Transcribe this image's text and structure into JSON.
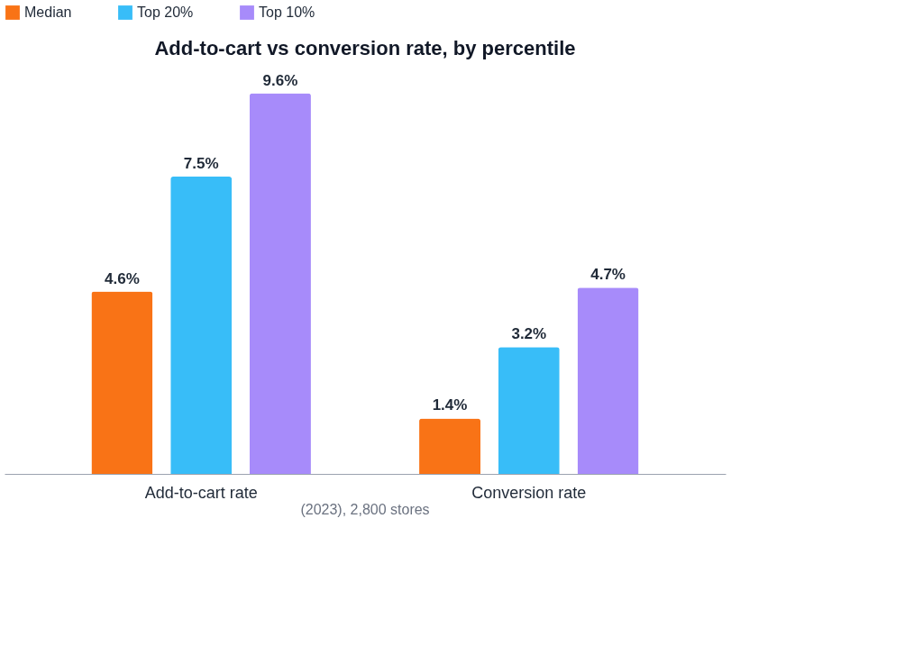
{
  "chart_data": {
    "type": "bar",
    "title": "Add-to-cart vs conversion rate, by percentile",
    "categories": [
      "Add-to-cart rate",
      "Conversion rate"
    ],
    "series": [
      {
        "name": "Median",
        "color": "#f97316",
        "values": [
          4.6,
          1.4
        ],
        "value_labels": [
          "4.6%",
          "1.4%"
        ]
      },
      {
        "name": "Top 20%",
        "color": "#38bdf8",
        "values": [
          7.5,
          3.2
        ],
        "value_labels": [
          "7.5%",
          "3.2%"
        ]
      },
      {
        "name": "Top 10%",
        "color": "#a78bfa",
        "values": [
          9.6,
          4.7
        ],
        "value_labels": [
          "9.6%",
          "4.7%"
        ]
      }
    ],
    "legend": "top left",
    "grid": false,
    "annotations": [
      "(2023), 2,800 stores"
    ]
  }
}
